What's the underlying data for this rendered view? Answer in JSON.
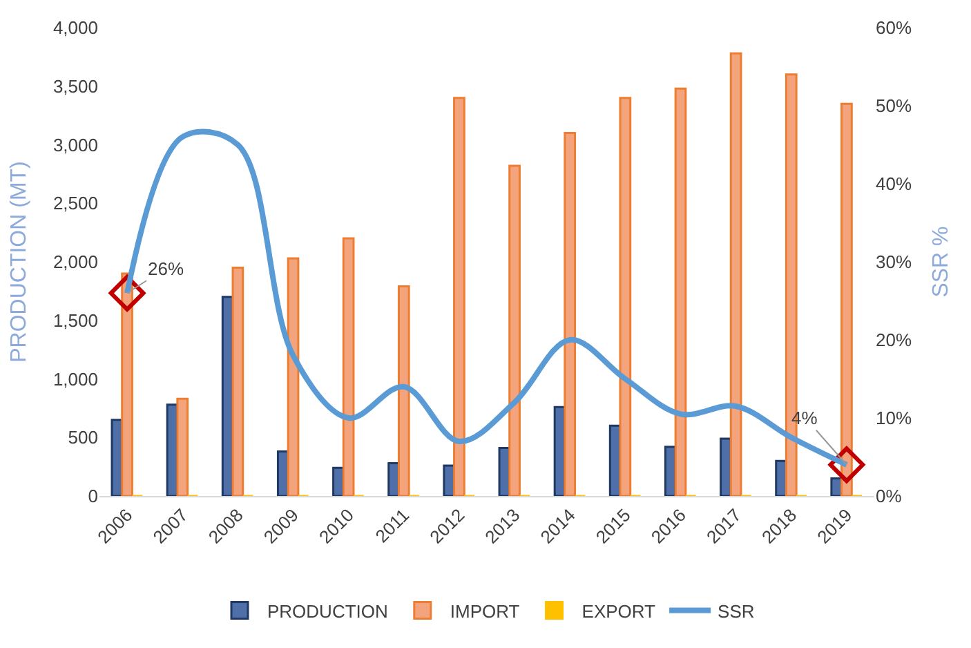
{
  "chart_data": {
    "type": "bar",
    "ylabel": "PRODUCTION (MT)",
    "y2label": "SSR %",
    "categories": [
      "2006",
      "2007",
      "2008",
      "2009",
      "2010",
      "2011",
      "2012",
      "2013",
      "2014",
      "2015",
      "2016",
      "2017",
      "2018",
      "2019"
    ],
    "series": [
      {
        "name": "PRODUCTION",
        "color": "#4f6fa8",
        "values": [
          650,
          780,
          1700,
          380,
          240,
          280,
          260,
          410,
          760,
          600,
          420,
          490,
          300,
          150
        ]
      },
      {
        "name": "IMPORT",
        "color": "#f4a47c",
        "values": [
          1900,
          830,
          1950,
          2030,
          2200,
          1790,
          3400,
          2820,
          3100,
          3400,
          3480,
          3780,
          3600,
          3350
        ]
      },
      {
        "name": "EXPORT",
        "color": "#ffc000",
        "values": [
          0,
          0,
          0,
          0,
          0,
          0,
          0,
          0,
          0,
          0,
          0,
          0,
          0,
          0
        ]
      },
      {
        "name": "SSR",
        "type": "line",
        "axis": "y2",
        "color": "#5b9bd5",
        "values": [
          26,
          46,
          45,
          18,
          10,
          14,
          7,
          12,
          20,
          15,
          10.5,
          11.5,
          7.5,
          4
        ]
      }
    ],
    "ylim": [
      0,
      4000
    ],
    "yticks": [
      {
        "value": 0,
        "label": "0"
      },
      {
        "value": 500,
        "label": "500"
      },
      {
        "value": 1000,
        "label": "1,000"
      },
      {
        "value": 1500,
        "label": "1,500"
      },
      {
        "value": 2000,
        "label": "2,000"
      },
      {
        "value": 2500,
        "label": "2,500"
      },
      {
        "value": 3000,
        "label": "3,000"
      },
      {
        "value": 3500,
        "label": "3,500"
      },
      {
        "value": 4000,
        "label": "4,000"
      }
    ],
    "y2lim": [
      0,
      60
    ],
    "y2ticks": [
      {
        "value": 0,
        "label": "0%"
      },
      {
        "value": 10,
        "label": "10%"
      },
      {
        "value": 20,
        "label": "20%"
      },
      {
        "value": 30,
        "label": "30%"
      },
      {
        "value": 40,
        "label": "40%"
      },
      {
        "value": 50,
        "label": "50%"
      },
      {
        "value": 60,
        "label": "60%"
      }
    ],
    "annotations": [
      {
        "text": "26%",
        "x": "2006",
        "y": 1733
      },
      {
        "text": "4%",
        "x": "2019",
        "y": 267
      }
    ],
    "legend": "bottom",
    "marker": "none",
    "line_style": "solid"
  }
}
